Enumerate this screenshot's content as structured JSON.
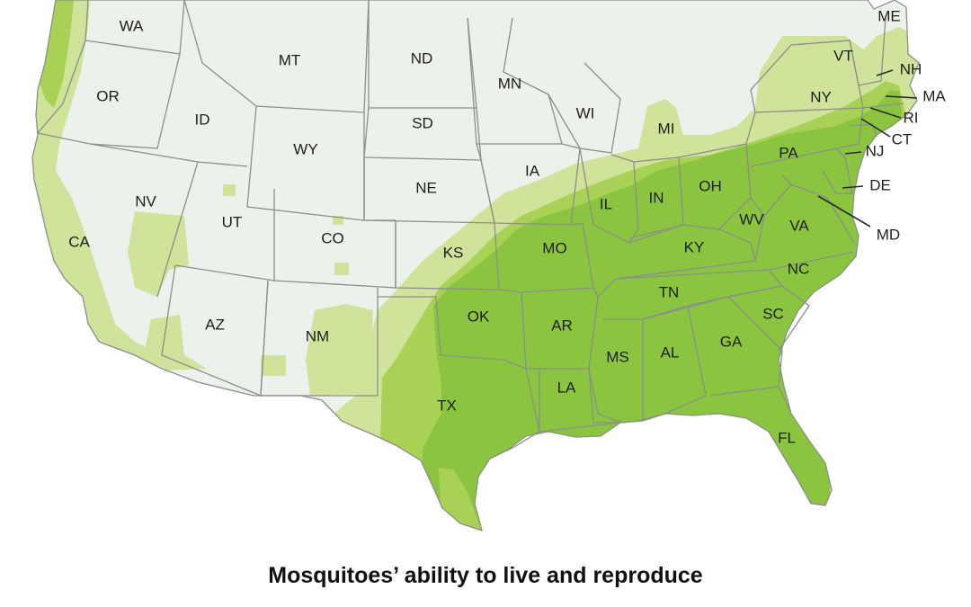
{
  "caption": "Mosquitoes’ ability to live and reproduce",
  "colors": {
    "background": "#ffffff",
    "land_none": "#edf1ec",
    "zone_low": "#cfe39a",
    "zone_mid": "#a9d155",
    "zone_high": "#8bc43f",
    "state_border": "#8a8f8a",
    "label_text": "#1d1d1b"
  },
  "states": [
    "WA",
    "OR",
    "CA",
    "ID",
    "NV",
    "MT",
    "WY",
    "UT",
    "AZ",
    "CO",
    "NM",
    "ND",
    "SD",
    "NE",
    "KS",
    "OK",
    "TX",
    "MN",
    "IA",
    "MO",
    "AR",
    "LA",
    "WI",
    "IL",
    "MS",
    "MI",
    "IN",
    "KY",
    "TN",
    "AL",
    "OH",
    "GA",
    "FL",
    "SC",
    "NC",
    "VA",
    "WV",
    "PA",
    "NY",
    "VT",
    "ME",
    "NH",
    "MA",
    "RI",
    "CT",
    "NJ",
    "DE",
    "MD"
  ]
}
